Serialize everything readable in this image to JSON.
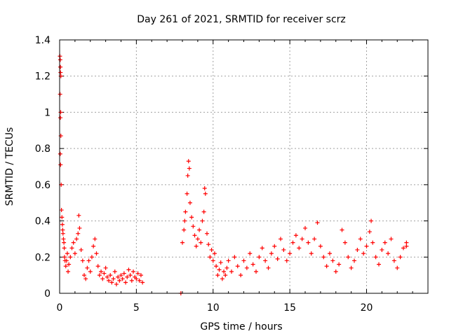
{
  "chart_data": {
    "type": "scatter",
    "title": "Day 261 of 2021, SRMTID for receiver scrz",
    "xlabel": "GPS time / hours",
    "ylabel": "SRMTID / TECUs",
    "xlim": [
      0,
      24
    ],
    "ylim": [
      0,
      1.4
    ],
    "xticks": [
      0,
      5,
      10,
      15,
      20
    ],
    "xtick_labels": [
      "0",
      "5",
      "10",
      "15",
      "20"
    ],
    "yticks": [
      0,
      0.2,
      0.4,
      0.6,
      0.8,
      1,
      1.2,
      1.4
    ],
    "ytick_labels": [
      "0",
      "0.2",
      "0.4",
      "0.6",
      "0.8",
      "1",
      "1.2",
      "1.4"
    ],
    "grid": true,
    "marker": "+",
    "series": [
      {
        "name": "SRMTID",
        "color": "#ff0000",
        "points": [
          [
            0.02,
            1.31
          ],
          [
            0.04,
            1.29
          ],
          [
            0.05,
            1.25
          ],
          [
            0.06,
            1.22
          ],
          [
            0.08,
            1.2
          ],
          [
            0.03,
            1.1
          ],
          [
            0.07,
            1.0
          ],
          [
            0.05,
            0.97
          ],
          [
            0.08,
            0.87
          ],
          [
            0.04,
            0.77
          ],
          [
            0.06,
            0.71
          ],
          [
            0.1,
            0.6
          ],
          [
            0.12,
            0.46
          ],
          [
            0.15,
            0.42
          ],
          [
            0.18,
            0.38
          ],
          [
            0.2,
            0.35
          ],
          [
            0.22,
            0.33
          ],
          [
            0.25,
            0.3
          ],
          [
            0.28,
            0.28
          ],
          [
            0.3,
            0.25
          ],
          [
            0.32,
            0.2
          ],
          [
            0.35,
            0.18
          ],
          [
            0.4,
            0.15
          ],
          [
            0.45,
            0.18
          ],
          [
            0.5,
            0.22
          ],
          [
            0.55,
            0.12
          ],
          [
            0.6,
            0.16
          ],
          [
            0.7,
            0.2
          ],
          [
            0.8,
            0.25
          ],
          [
            0.9,
            0.28
          ],
          [
            1.0,
            0.22
          ],
          [
            1.1,
            0.3
          ],
          [
            1.2,
            0.33
          ],
          [
            1.25,
            0.43
          ],
          [
            1.3,
            0.36
          ],
          [
            1.4,
            0.24
          ],
          [
            1.5,
            0.18
          ],
          [
            1.6,
            0.1
          ],
          [
            1.7,
            0.08
          ],
          [
            1.8,
            0.14
          ],
          [
            1.9,
            0.18
          ],
          [
            2.0,
            0.12
          ],
          [
            2.1,
            0.2
          ],
          [
            2.2,
            0.26
          ],
          [
            2.3,
            0.3
          ],
          [
            2.4,
            0.22
          ],
          [
            2.5,
            0.15
          ],
          [
            2.6,
            0.1
          ],
          [
            2.7,
            0.12
          ],
          [
            2.8,
            0.08
          ],
          [
            2.9,
            0.11
          ],
          [
            3.0,
            0.14
          ],
          [
            3.1,
            0.09
          ],
          [
            3.2,
            0.07
          ],
          [
            3.3,
            0.1
          ],
          [
            3.4,
            0.06
          ],
          [
            3.5,
            0.08
          ],
          [
            3.6,
            0.12
          ],
          [
            3.7,
            0.05
          ],
          [
            3.8,
            0.09
          ],
          [
            3.9,
            0.07
          ],
          [
            4.0,
            0.1
          ],
          [
            4.1,
            0.08
          ],
          [
            4.2,
            0.11
          ],
          [
            4.3,
            0.06
          ],
          [
            4.4,
            0.09
          ],
          [
            4.5,
            0.13
          ],
          [
            4.6,
            0.1
          ],
          [
            4.7,
            0.07
          ],
          [
            4.8,
            0.12
          ],
          [
            4.9,
            0.09
          ],
          [
            5.0,
            0.08
          ],
          [
            5.1,
            0.11
          ],
          [
            5.2,
            0.07
          ],
          [
            5.3,
            0.1
          ],
          [
            5.4,
            0.06
          ],
          [
            7.9,
            0.0
          ],
          [
            8.0,
            0.28
          ],
          [
            8.1,
            0.35
          ],
          [
            8.15,
            0.4
          ],
          [
            8.2,
            0.45
          ],
          [
            8.3,
            0.55
          ],
          [
            8.35,
            0.65
          ],
          [
            8.4,
            0.73
          ],
          [
            8.45,
            0.69
          ],
          [
            8.5,
            0.5
          ],
          [
            8.6,
            0.42
          ],
          [
            8.7,
            0.37
          ],
          [
            8.8,
            0.32
          ],
          [
            8.9,
            0.26
          ],
          [
            9.0,
            0.3
          ],
          [
            9.1,
            0.35
          ],
          [
            9.2,
            0.28
          ],
          [
            9.3,
            0.4
          ],
          [
            9.4,
            0.45
          ],
          [
            9.45,
            0.58
          ],
          [
            9.5,
            0.55
          ],
          [
            9.6,
            0.33
          ],
          [
            9.7,
            0.27
          ],
          [
            9.8,
            0.2
          ],
          [
            9.9,
            0.24
          ],
          [
            10.0,
            0.18
          ],
          [
            10.1,
            0.22
          ],
          [
            10.2,
            0.15
          ],
          [
            10.3,
            0.1
          ],
          [
            10.4,
            0.13
          ],
          [
            10.5,
            0.17
          ],
          [
            10.6,
            0.08
          ],
          [
            10.7,
            0.12
          ],
          [
            10.8,
            0.1
          ],
          [
            10.9,
            0.14
          ],
          [
            11.0,
            0.18
          ],
          [
            11.2,
            0.12
          ],
          [
            11.4,
            0.2
          ],
          [
            11.6,
            0.15
          ],
          [
            11.8,
            0.1
          ],
          [
            12.0,
            0.18
          ],
          [
            12.2,
            0.14
          ],
          [
            12.4,
            0.22
          ],
          [
            12.6,
            0.16
          ],
          [
            12.8,
            0.12
          ],
          [
            13.0,
            0.2
          ],
          [
            13.2,
            0.25
          ],
          [
            13.4,
            0.18
          ],
          [
            13.6,
            0.14
          ],
          [
            13.8,
            0.22
          ],
          [
            14.0,
            0.26
          ],
          [
            14.2,
            0.19
          ],
          [
            14.4,
            0.3
          ],
          [
            14.6,
            0.24
          ],
          [
            14.8,
            0.18
          ],
          [
            15.0,
            0.22
          ],
          [
            15.2,
            0.28
          ],
          [
            15.4,
            0.32
          ],
          [
            15.6,
            0.25
          ],
          [
            15.8,
            0.3
          ],
          [
            16.0,
            0.36
          ],
          [
            16.2,
            0.28
          ],
          [
            16.4,
            0.22
          ],
          [
            16.6,
            0.3
          ],
          [
            16.8,
            0.39
          ],
          [
            17.0,
            0.26
          ],
          [
            17.2,
            0.2
          ],
          [
            17.4,
            0.15
          ],
          [
            17.6,
            0.22
          ],
          [
            17.8,
            0.18
          ],
          [
            18.0,
            0.12
          ],
          [
            18.2,
            0.16
          ],
          [
            18.4,
            0.35
          ],
          [
            18.6,
            0.28
          ],
          [
            18.8,
            0.2
          ],
          [
            19.0,
            0.14
          ],
          [
            19.2,
            0.18
          ],
          [
            19.4,
            0.24
          ],
          [
            19.6,
            0.3
          ],
          [
            19.8,
            0.22
          ],
          [
            20.0,
            0.26
          ],
          [
            20.2,
            0.34
          ],
          [
            20.3,
            0.4
          ],
          [
            20.4,
            0.28
          ],
          [
            20.6,
            0.2
          ],
          [
            20.8,
            0.16
          ],
          [
            21.0,
            0.24
          ],
          [
            21.2,
            0.28
          ],
          [
            21.4,
            0.22
          ],
          [
            21.6,
            0.3
          ],
          [
            21.8,
            0.18
          ],
          [
            22.0,
            0.14
          ],
          [
            22.2,
            0.2
          ],
          [
            22.4,
            0.25
          ],
          [
            22.6,
            0.26
          ],
          [
            22.6,
            0.28
          ]
        ]
      }
    ]
  }
}
